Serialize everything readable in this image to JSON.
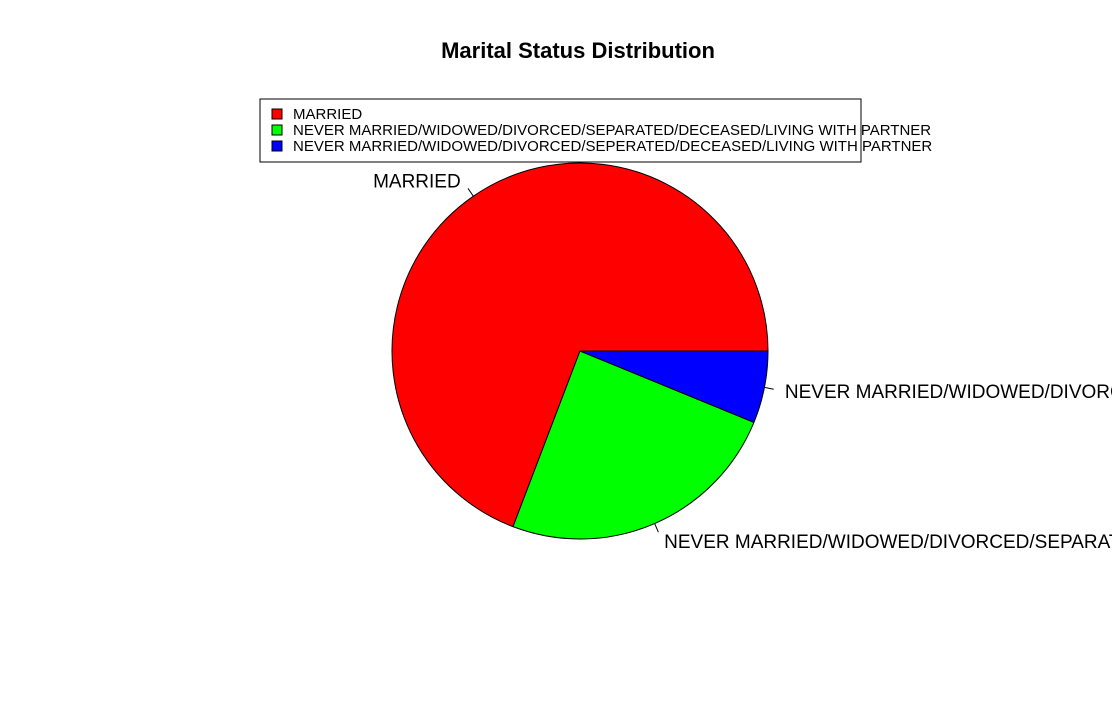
{
  "chart_data": {
    "type": "pie",
    "title": "Marital Status Distribution",
    "categories": [
      "MARRIED",
      "NEVER MARRIED/WIDOWED/DIVORCED/SEPARATED/DECEASED/LIVING WITH PARTNER",
      "NEVER MARRIED/WIDOWED/DIVORCED/SEPERATED/DECEASED/LIVING WITH PARTNER"
    ],
    "values": [
      69.2,
      24.6,
      6.2
    ],
    "colors": [
      "#FF0000",
      "#00FF00",
      "#0000FF"
    ],
    "direction": "counterclockwise",
    "start_angle_deg": 0,
    "slice_labels": [
      "MARRIED",
      "NEVER MARRIED/WIDOWED/DIVORCED/SEPARATED/DECEASED/LIVING WITH PARTNER",
      "NEVER MARRIED/WIDOWED/DIVORCED/SEPERATED/DECEASED/LIVING WITH PARTNER"
    ],
    "legend": {
      "position": "top",
      "entries": [
        "MARRIED",
        "NEVER MARRIED/WIDOWED/DIVORCED/SEPARATED/DECEASED/LIVING WITH PARTNER",
        "NEVER MARRIED/WIDOWED/DIVORCED/SEPERATED/DECEASED/LIVING WITH PARTNER"
      ]
    }
  }
}
